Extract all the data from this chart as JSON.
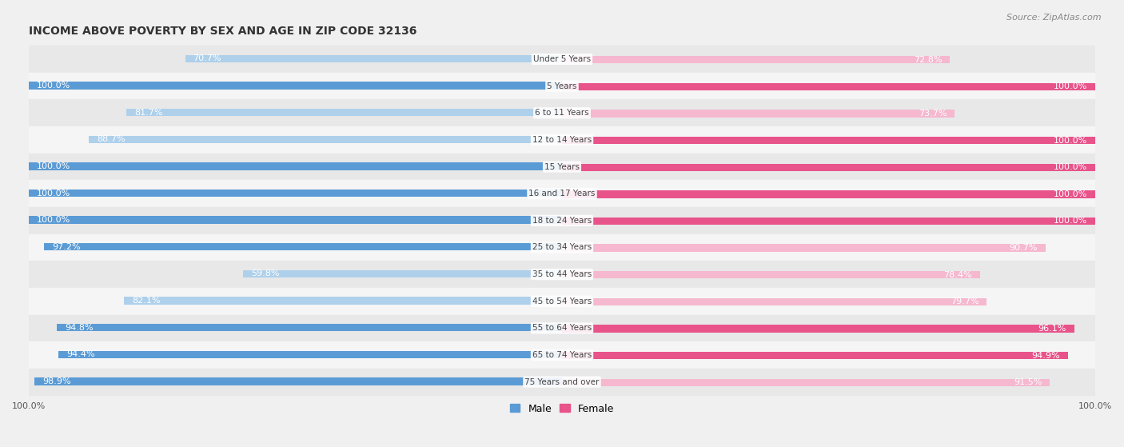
{
  "title": "INCOME ABOVE POVERTY BY SEX AND AGE IN ZIP CODE 32136",
  "source": "Source: ZipAtlas.com",
  "categories": [
    "Under 5 Years",
    "5 Years",
    "6 to 11 Years",
    "12 to 14 Years",
    "15 Years",
    "16 and 17 Years",
    "18 to 24 Years",
    "25 to 34 Years",
    "35 to 44 Years",
    "45 to 54 Years",
    "55 to 64 Years",
    "65 to 74 Years",
    "75 Years and over"
  ],
  "male_values": [
    70.7,
    100.0,
    81.7,
    88.7,
    100.0,
    100.0,
    100.0,
    97.2,
    59.8,
    82.1,
    94.8,
    94.4,
    98.9
  ],
  "female_values": [
    72.8,
    100.0,
    73.7,
    100.0,
    100.0,
    100.0,
    100.0,
    90.7,
    78.4,
    79.7,
    96.1,
    94.9,
    91.5
  ],
  "male_color_full": "#5b9bd5",
  "male_color_light": "#aed0eb",
  "female_color_full": "#e8538a",
  "female_color_light": "#f5b8cf",
  "male_label": "Male",
  "female_label": "Female",
  "title_fontsize": 10,
  "label_fontsize": 8,
  "tick_fontsize": 8,
  "source_fontsize": 8,
  "legend_fontsize": 9,
  "row_colors": [
    "#e8e8e8",
    "#f5f5f5"
  ],
  "background_color": "#f0f0f0"
}
